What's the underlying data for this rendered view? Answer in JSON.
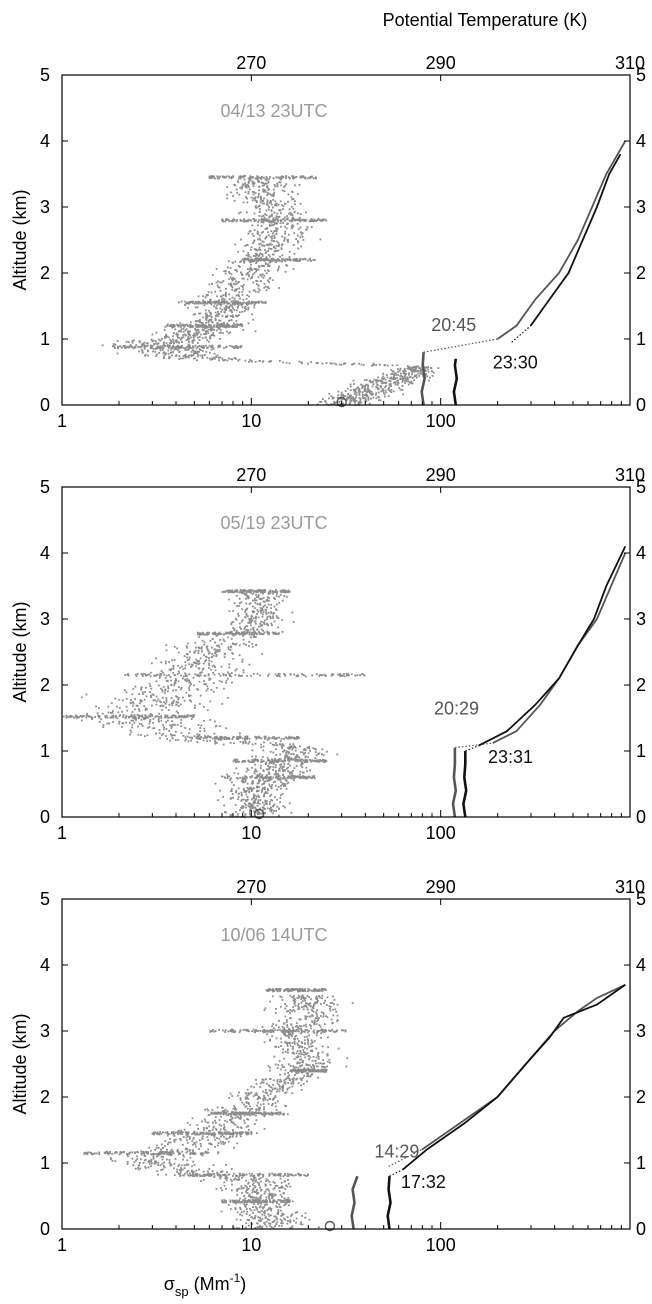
{
  "figure": {
    "top_title": "Potential Temperature (K)",
    "bottom_xlabel": {
      "main": "σ",
      "sub": "sp",
      "unit_pre": " (Mm",
      "unit_sup": "-1",
      "unit_post": ")"
    }
  },
  "colors": {
    "aerosol": "#8c8c8c",
    "sounding_early": "#555555",
    "sounding_late": "#111111",
    "date_label": "#9a9a9a",
    "axis": "#000000"
  },
  "chart_data": [
    {
      "type": "scatter",
      "date_label": "04/13 23UTC",
      "ylabel": "Altitude (km)",
      "ylim": [
        0,
        5
      ],
      "y_ticks": [
        "0",
        "1",
        "2",
        "3",
        "4",
        "5"
      ],
      "bottom_axis": {
        "scale": "log",
        "lim": [
          1,
          1000
        ],
        "ticks": [
          {
            "value": 1,
            "label": "1"
          },
          {
            "value": 10,
            "label": "10"
          },
          {
            "value": 100,
            "label": "100"
          }
        ]
      },
      "top_axis": {
        "scale": "linear",
        "lim": [
          250,
          310
        ],
        "ticks": [
          {
            "value": 270,
            "label": "270"
          },
          {
            "value": 290,
            "label": "290"
          },
          {
            "value": 310,
            "label": "310"
          }
        ]
      },
      "aerosol_marker": {
        "x": 30,
        "y": 0
      },
      "aerosol_profile": [
        [
          0.0,
          30,
          0.25
        ],
        [
          0.1,
          35,
          0.3
        ],
        [
          0.2,
          42,
          0.3
        ],
        [
          0.3,
          50,
          0.3
        ],
        [
          0.4,
          60,
          0.3
        ],
        [
          0.5,
          70,
          0.25
        ],
        [
          0.58,
          80,
          0.12
        ],
        [
          0.7,
          5,
          0.4
        ],
        [
          0.8,
          4,
          0.4
        ],
        [
          0.9,
          3.2,
          0.45
        ],
        [
          1.0,
          4,
          0.35
        ],
        [
          1.1,
          5.5,
          0.35
        ],
        [
          1.2,
          6.5,
          0.3
        ],
        [
          1.35,
          7,
          0.3
        ],
        [
          1.5,
          7.5,
          0.3
        ],
        [
          1.7,
          8,
          0.3
        ],
        [
          1.9,
          9,
          0.3
        ],
        [
          2.1,
          11,
          0.3
        ],
        [
          2.3,
          12,
          0.3
        ],
        [
          2.5,
          14,
          0.3
        ],
        [
          2.7,
          13,
          0.3
        ],
        [
          2.9,
          13,
          0.3
        ],
        [
          3.1,
          12,
          0.3
        ],
        [
          3.3,
          11,
          0.3
        ],
        [
          3.45,
          11,
          0.25
        ]
      ],
      "aerosol_layers": [
        {
          "y": 0.88,
          "x_min": 1.8,
          "x_max": 9
        },
        {
          "y": 1.2,
          "x_min": 3.5,
          "x_max": 9
        },
        {
          "y": 1.55,
          "x_min": 4,
          "x_max": 12
        },
        {
          "y": 2.2,
          "x_min": 9,
          "x_max": 22
        },
        {
          "y": 2.8,
          "x_min": 7,
          "x_max": 25
        },
        {
          "y": 3.45,
          "x_min": 6,
          "x_max": 22
        }
      ],
      "soundings": [
        {
          "label": "20:45",
          "color_key": "sounding_early",
          "label_pos": {
            "theta": 289,
            "z": 1.12
          },
          "ml_top": 0.8,
          "points": [
            [
              288.2,
              0.0
            ],
            [
              288.0,
              0.2
            ],
            [
              288.3,
              0.4
            ],
            [
              288.1,
              0.6
            ],
            [
              288.2,
              0.8
            ],
            [
              296,
              1.0
            ],
            [
              298,
              1.2
            ],
            [
              300,
              1.6
            ],
            [
              302.5,
              2.0
            ],
            [
              304.5,
              2.5
            ],
            [
              306,
              3.0
            ],
            [
              307.5,
              3.5
            ],
            [
              309.5,
              4.0
            ]
          ]
        },
        {
          "label": "23:30",
          "color_key": "sounding_late",
          "label_pos": {
            "theta": 295.5,
            "z": 0.55
          },
          "ml_top": 0.72,
          "points": [
            [
              291.6,
              0.0
            ],
            [
              291.4,
              0.2
            ],
            [
              291.7,
              0.4
            ],
            [
              291.5,
              0.6
            ],
            [
              291.6,
              0.7
            ],
            [
              297.5,
              0.95
            ],
            [
              299.5,
              1.2
            ],
            [
              301.5,
              1.6
            ],
            [
              303.5,
              2.0
            ],
            [
              305,
              2.5
            ],
            [
              306.5,
              3.0
            ],
            [
              307.8,
              3.5
            ],
            [
              309,
              3.8
            ]
          ]
        }
      ]
    },
    {
      "type": "scatter",
      "date_label": "05/19 23UTC",
      "ylabel": "Altitude (km)",
      "ylim": [
        0,
        5
      ],
      "y_ticks": [
        "0",
        "1",
        "2",
        "3",
        "4",
        "5"
      ],
      "bottom_axis": {
        "scale": "log",
        "lim": [
          1,
          1000
        ],
        "ticks": [
          {
            "value": 1,
            "label": "1"
          },
          {
            "value": 10,
            "label": "10"
          },
          {
            "value": 100,
            "label": "100"
          }
        ]
      },
      "top_axis": {
        "scale": "linear",
        "lim": [
          250,
          310
        ],
        "ticks": [
          {
            "value": 270,
            "label": "270"
          },
          {
            "value": 290,
            "label": "290"
          },
          {
            "value": 310,
            "label": "310"
          }
        ]
      },
      "aerosol_marker": {
        "x": 11,
        "y": 0
      },
      "aerosol_profile": [
        [
          0.0,
          10,
          0.3
        ],
        [
          0.15,
          11,
          0.3
        ],
        [
          0.3,
          10,
          0.3
        ],
        [
          0.45,
          11,
          0.3
        ],
        [
          0.6,
          12,
          0.3
        ],
        [
          0.75,
          14,
          0.3
        ],
        [
          0.9,
          16,
          0.3
        ],
        [
          1.05,
          18,
          0.3
        ],
        [
          1.2,
          5,
          0.5
        ],
        [
          1.4,
          3,
          0.6
        ],
        [
          1.55,
          2.5,
          0.55
        ],
        [
          1.75,
          3.5,
          0.55
        ],
        [
          1.95,
          4,
          0.5
        ],
        [
          2.15,
          5,
          0.45
        ],
        [
          2.35,
          5.5,
          0.45
        ],
        [
          2.55,
          6,
          0.4
        ],
        [
          2.8,
          10,
          0.3
        ],
        [
          3.0,
          11,
          0.25
        ],
        [
          3.2,
          11,
          0.25
        ],
        [
          3.4,
          11,
          0.25
        ]
      ],
      "aerosol_layers": [
        {
          "y": 0.6,
          "x_min": 7,
          "x_max": 22
        },
        {
          "y": 0.85,
          "x_min": 8,
          "x_max": 25
        },
        {
          "y": 1.2,
          "x_min": 5,
          "x_max": 18
        },
        {
          "y": 1.52,
          "x_min": 1,
          "x_max": 5
        },
        {
          "y": 2.15,
          "x_min": 2,
          "x_max": 40
        },
        {
          "y": 2.78,
          "x_min": 5,
          "x_max": 14
        },
        {
          "y": 3.42,
          "x_min": 7,
          "x_max": 16
        }
      ],
      "soundings": [
        {
          "label": "20:29",
          "color_key": "sounding_early",
          "label_pos": {
            "theta": 289.3,
            "z": 1.55
          },
          "ml_top": 1.05,
          "points": [
            [
              291.5,
              0.0
            ],
            [
              291.3,
              0.2
            ],
            [
              291.6,
              0.4
            ],
            [
              291.4,
              0.6
            ],
            [
              291.5,
              0.8
            ],
            [
              291.5,
              1.05
            ],
            [
              295.5,
              1.12
            ],
            [
              298,
              1.3
            ],
            [
              300.5,
              1.7
            ],
            [
              302.5,
              2.1
            ],
            [
              304.5,
              2.6
            ],
            [
              306.5,
              3.0
            ],
            [
              308,
              3.5
            ],
            [
              309.5,
              4.0
            ]
          ]
        },
        {
          "label": "23:31",
          "color_key": "sounding_late",
          "label_pos": {
            "theta": 295,
            "z": 0.82
          },
          "ml_top": 1.0,
          "points": [
            [
              292.6,
              0.0
            ],
            [
              292.4,
              0.2
            ],
            [
              292.7,
              0.4
            ],
            [
              292.5,
              0.6
            ],
            [
              292.6,
              0.8
            ],
            [
              292.6,
              1.0
            ],
            [
              294,
              1.08
            ],
            [
              297,
              1.3
            ],
            [
              300,
              1.7
            ],
            [
              302.5,
              2.1
            ],
            [
              304.5,
              2.6
            ],
            [
              306.2,
              3.0
            ],
            [
              307.5,
              3.5
            ],
            [
              309.5,
              4.1
            ]
          ]
        }
      ]
    },
    {
      "type": "scatter",
      "date_label": "10/06 14UTC",
      "ylabel": "Altitude (km)",
      "ylim": [
        0,
        5
      ],
      "y_ticks": [
        "0",
        "1",
        "2",
        "3",
        "4",
        "5"
      ],
      "bottom_axis": {
        "scale": "log",
        "lim": [
          1,
          1000
        ],
        "ticks": [
          {
            "value": 1,
            "label": "1"
          },
          {
            "value": 10,
            "label": "10"
          },
          {
            "value": 100,
            "label": "100"
          }
        ]
      },
      "top_axis": {
        "scale": "linear",
        "lim": [
          250,
          310
        ],
        "ticks": [
          {
            "value": 270,
            "label": "270"
          },
          {
            "value": 290,
            "label": "290"
          },
          {
            "value": 310,
            "label": "310"
          }
        ]
      },
      "aerosol_marker": {
        "x": 26,
        "y": 0
      },
      "aerosol_profile": [
        [
          0.0,
          12,
          0.35
        ],
        [
          0.15,
          13,
          0.35
        ],
        [
          0.3,
          11,
          0.3
        ],
        [
          0.45,
          12,
          0.3
        ],
        [
          0.6,
          11,
          0.3
        ],
        [
          0.75,
          10,
          0.35
        ],
        [
          0.9,
          4,
          0.45
        ],
        [
          1.05,
          3,
          0.45
        ],
        [
          1.2,
          4,
          0.45
        ],
        [
          1.4,
          6,
          0.4
        ],
        [
          1.6,
          7,
          0.35
        ],
        [
          1.8,
          9,
          0.35
        ],
        [
          2.0,
          11,
          0.3
        ],
        [
          2.2,
          14,
          0.3
        ],
        [
          2.4,
          18,
          0.3
        ],
        [
          2.6,
          20,
          0.3
        ],
        [
          2.8,
          18,
          0.3
        ],
        [
          3.0,
          16,
          0.3
        ],
        [
          3.2,
          20,
          0.3
        ],
        [
          3.4,
          20,
          0.3
        ],
        [
          3.55,
          20,
          0.25
        ]
      ],
      "aerosol_layers": [
        {
          "y": 0.42,
          "x_min": 7,
          "x_max": 16
        },
        {
          "y": 0.82,
          "x_min": 4,
          "x_max": 20
        },
        {
          "y": 1.15,
          "x_min": 1.3,
          "x_max": 6
        },
        {
          "y": 1.45,
          "x_min": 3,
          "x_max": 10
        },
        {
          "y": 1.75,
          "x_min": 6,
          "x_max": 16
        },
        {
          "y": 2.4,
          "x_min": 16,
          "x_max": 25
        },
        {
          "y": 3.0,
          "x_min": 6,
          "x_max": 32
        },
        {
          "y": 3.62,
          "x_min": 12,
          "x_max": 25
        }
      ],
      "soundings": [
        {
          "label": "14:29",
          "color_key": "sounding_early",
          "label_pos": {
            "theta": 283,
            "z": 1.08
          },
          "ml_top": 0.82,
          "points": [
            [
              280.8,
              0.0
            ],
            [
              280.6,
              0.2
            ],
            [
              280.9,
              0.4
            ],
            [
              280.7,
              0.6
            ],
            [
              281.2,
              0.8
            ],
            [
              284.5,
              0.95
            ],
            [
              288,
              1.2
            ],
            [
              292,
              1.6
            ],
            [
              296,
              2.0
            ],
            [
              299,
              2.5
            ],
            [
              302,
              3.0
            ],
            [
              304.5,
              3.3
            ],
            [
              306.5,
              3.5
            ],
            [
              309.5,
              3.7
            ]
          ]
        },
        {
          "label": "17:32",
          "color_key": "sounding_late",
          "label_pos": {
            "theta": 285.8,
            "z": 0.62
          },
          "ml_top": 0.8,
          "points": [
            [
              284.6,
              0.0
            ],
            [
              284.4,
              0.2
            ],
            [
              284.7,
              0.4
            ],
            [
              284.5,
              0.6
            ],
            [
              284.6,
              0.8
            ],
            [
              286,
              0.9
            ],
            [
              288.5,
              1.2
            ],
            [
              292.5,
              1.6
            ],
            [
              296,
              2.0
            ],
            [
              299,
              2.5
            ],
            [
              301.5,
              2.9
            ],
            [
              303,
              3.2
            ],
            [
              306.5,
              3.4
            ],
            [
              309.5,
              3.7
            ]
          ]
        }
      ]
    }
  ]
}
